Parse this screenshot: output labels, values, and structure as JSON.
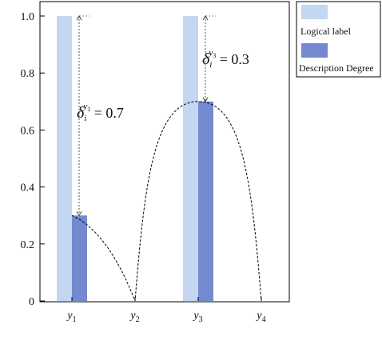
{
  "chart_data": {
    "type": "bar",
    "categories": [
      {
        "base": "y",
        "sub": "1"
      },
      {
        "base": "y",
        "sub": "2"
      },
      {
        "base": "y",
        "sub": "3"
      },
      {
        "base": "y",
        "sub": "4"
      }
    ],
    "series": [
      {
        "name": "Logical label",
        "color": "#c3d6f2",
        "values": [
          1.0,
          0,
          1.0,
          0
        ]
      },
      {
        "name": "Description Degree",
        "color": "#7589d0",
        "values": [
          0.3,
          0,
          0.7,
          0
        ]
      }
    ],
    "ylim": [
      0,
      1.0
    ],
    "yticks": [
      "0",
      "0.2",
      "0.4",
      "0.6",
      "0.8",
      "1.0"
    ],
    "grid": false,
    "legend_position": "right",
    "curve": {
      "style": "dashed",
      "points_at": [
        [
          1,
          0.3
        ],
        [
          2,
          0.0
        ],
        [
          3,
          0.7
        ],
        [
          4,
          0.0
        ]
      ]
    },
    "annotations": [
      {
        "category_index": 0,
        "delta": "δ",
        "sub": "i",
        "sup": "y",
        "supsub": "1",
        "eq": " = 0.7",
        "value": 0.7
      },
      {
        "category_index": 2,
        "delta": "δ",
        "sub": "i",
        "sup": "y",
        "supsub": "3",
        "eq": " = 0.3",
        "value": 0.3
      }
    ]
  }
}
